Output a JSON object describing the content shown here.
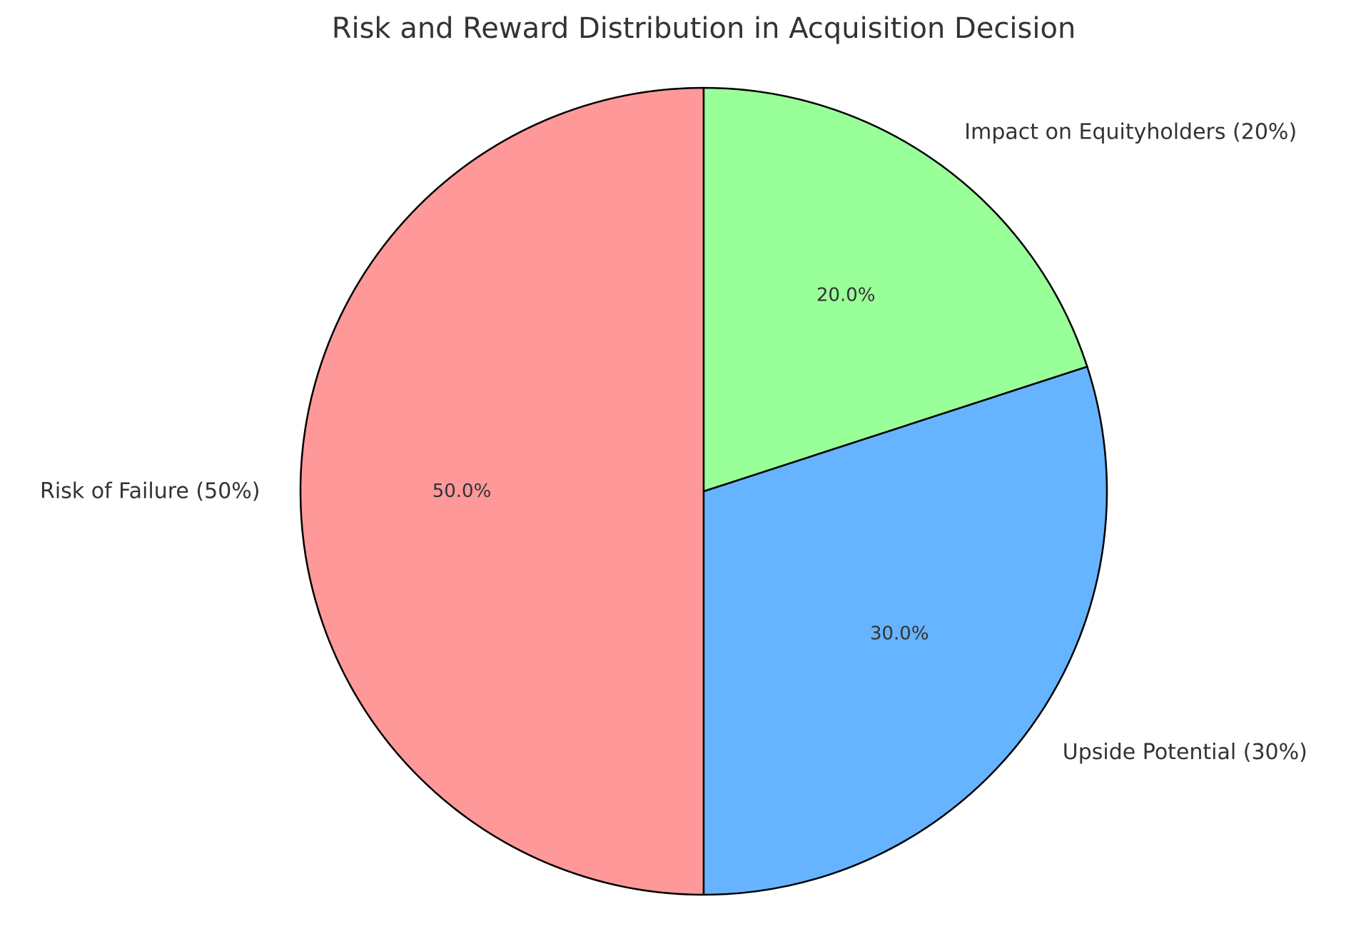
{
  "chart_data": {
    "type": "pie",
    "title": "Risk and Reward Distribution in Acquisition Decision",
    "slices": [
      {
        "label": "Risk of Failure (50%)",
        "value": 50,
        "pct_label": "50.0%",
        "color": "#ff9999"
      },
      {
        "label": "Upside Potential (30%)",
        "value": 30,
        "pct_label": "30.0%",
        "color": "#66b3ff"
      },
      {
        "label": "Impact on Equityholders (20%)",
        "value": 20,
        "pct_label": "20.0%",
        "color": "#99ff99"
      }
    ],
    "start_angle_deg": 90,
    "direction": "counterclockwise",
    "edge_color": "#000000",
    "legend": "none"
  }
}
